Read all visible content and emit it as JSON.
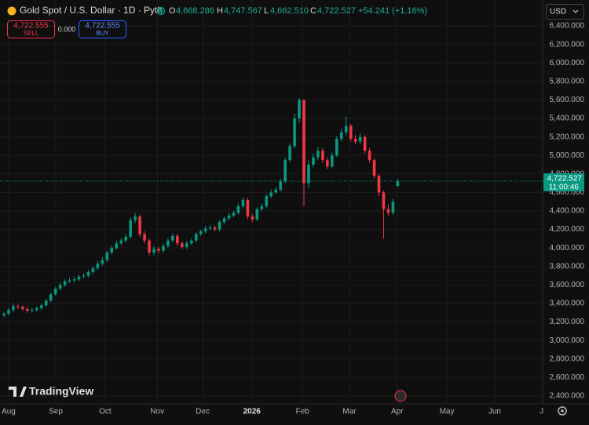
{
  "header": {
    "symbol": "Gold Spot / U.S. Dollar · 1D · Pyth",
    "o_key": "O",
    "o": "4,668.286",
    "h_key": "H",
    "h": "4,747.567",
    "l_key": "L",
    "l": "4,662.510",
    "c_key": "C",
    "c": "4,722.527",
    "change": "+54.241 (+1.16%)",
    "sell_price": "4,722.555",
    "sell": "SELL",
    "spread": "0.000",
    "buy_price": "4,722.555",
    "buy": "BUY",
    "currency": "USD",
    "brand": "TradingView"
  },
  "chart_data": {
    "type": "candlestick",
    "up_color": "#089981",
    "down_color": "#f23645",
    "open": [
      3270,
      3290,
      3330,
      3370,
      3360,
      3340,
      3320,
      3330,
      3350,
      3380,
      3430,
      3500,
      3560,
      3600,
      3640,
      3650,
      3660,
      3690,
      3700,
      3740,
      3780,
      3830,
      3870,
      3950,
      4000,
      4050,
      4080,
      4120,
      4300,
      4340,
      4150,
      4080,
      3950,
      3990,
      3970,
      4020,
      4080,
      4130,
      4050,
      4010,
      4050,
      4080,
      4150,
      4180,
      4210,
      4220,
      4200,
      4280,
      4320,
      4350,
      4380,
      4450,
      4520,
      4340,
      4310,
      4420,
      4450,
      4560,
      4600,
      4630,
      4720,
      4950,
      5100,
      5400,
      5600,
      4700,
      4900,
      4980,
      5050,
      4950,
      4880,
      5000,
      5180,
      5250,
      5320,
      5180,
      5150,
      5200,
      5050,
      4950,
      4780,
      4600,
      4420,
      4380,
      4668.286
    ],
    "high": [
      3310,
      3350,
      3400,
      3390,
      3380,
      3360,
      3350,
      3370,
      3400,
      3450,
      3520,
      3580,
      3630,
      3660,
      3680,
      3690,
      3710,
      3730,
      3760,
      3800,
      3860,
      3900,
      3970,
      4030,
      4080,
      4110,
      4150,
      4330,
      4380,
      4360,
      4180,
      4100,
      4020,
      4010,
      4050,
      4110,
      4160,
      4150,
      4070,
      4080,
      4100,
      4170,
      4200,
      4240,
      4250,
      4240,
      4300,
      4340,
      4380,
      4400,
      4480,
      4550,
      4540,
      4370,
      4440,
      4480,
      4580,
      4630,
      4660,
      4750,
      4980,
      5130,
      5450,
      5620,
      5600,
      4950,
      5020,
      5090,
      5080,
      4980,
      5030,
      5210,
      5290,
      5420,
      5340,
      5220,
      5240,
      5220,
      5080,
      4970,
      4800,
      4620,
      4470,
      4530,
      4747.567
    ],
    "low": [
      3250,
      3270,
      3310,
      3340,
      3320,
      3300,
      3300,
      3310,
      3330,
      3360,
      3410,
      3480,
      3540,
      3580,
      3620,
      3630,
      3640,
      3670,
      3680,
      3720,
      3760,
      3810,
      3850,
      3930,
      3980,
      4030,
      4060,
      4100,
      4270,
      4120,
      4050,
      3920,
      3920,
      3940,
      3950,
      4000,
      4060,
      4020,
      3990,
      3990,
      4030,
      4060,
      4130,
      4160,
      4190,
      4180,
      4180,
      4260,
      4300,
      4330,
      4360,
      4430,
      4310,
      4280,
      4290,
      4400,
      4430,
      4540,
      4580,
      4610,
      4700,
      4930,
      5080,
      5350,
      4450,
      4650,
      4870,
      4950,
      4920,
      4850,
      4860,
      4980,
      5150,
      5220,
      5150,
      5120,
      5120,
      5020,
      4920,
      4750,
      4560,
      4100,
      4350,
      4360,
      4662.51
    ],
    "close": [
      3290,
      3330,
      3370,
      3360,
      3340,
      3320,
      3330,
      3350,
      3380,
      3430,
      3500,
      3560,
      3600,
      3640,
      3650,
      3660,
      3690,
      3700,
      3740,
      3780,
      3830,
      3870,
      3950,
      4000,
      4050,
      4080,
      4120,
      4300,
      4340,
      4150,
      4080,
      3950,
      3990,
      3970,
      4020,
      4080,
      4130,
      4050,
      4010,
      4050,
      4080,
      4150,
      4180,
      4210,
      4220,
      4200,
      4280,
      4320,
      4350,
      4380,
      4450,
      4520,
      4340,
      4310,
      4420,
      4450,
      4560,
      4600,
      4630,
      4720,
      4950,
      5100,
      5400,
      5600,
      4700,
      4900,
      4980,
      5050,
      4950,
      4880,
      5000,
      5180,
      5250,
      5320,
      5180,
      5150,
      5200,
      5050,
      4950,
      4780,
      4600,
      4420,
      4380,
      4500,
      4722.527
    ],
    "xlim": [
      -0.84,
      115.1
    ],
    "xticks": [
      {
        "value": 1.0,
        "label": "Aug"
      },
      {
        "value": 11.06,
        "label": "Sep"
      },
      {
        "value": 21.6,
        "label": "Oct"
      },
      {
        "value": 32.7,
        "label": "Nov"
      },
      {
        "value": 42.4,
        "label": "Dec"
      },
      {
        "value": 52.9,
        "label": "2026"
      },
      {
        "value": 63.7,
        "label": "Feb"
      },
      {
        "value": 73.7,
        "label": "Mar"
      },
      {
        "value": 83.9,
        "label": "Apr"
      },
      {
        "value": 94.5,
        "label": "May"
      },
      {
        "value": 104.7,
        "label": "Jun"
      },
      {
        "value": 114.7,
        "label": "J"
      }
    ],
    "ylim": [
      2315,
      6680
    ],
    "yticks": [
      {
        "value": 2400,
        "label": "2,400.000"
      },
      {
        "value": 2600,
        "label": "2,600.000"
      },
      {
        "value": 2800,
        "label": "2,800.000"
      },
      {
        "value": 3000,
        "label": "3,000.000"
      },
      {
        "value": 3200,
        "label": "3,200.000"
      },
      {
        "value": 3400,
        "label": "3,400.000"
      },
      {
        "value": 3600,
        "label": "3,600.000"
      },
      {
        "value": 3800,
        "label": "3,800.000"
      },
      {
        "value": 4000,
        "label": "4,000.000"
      },
      {
        "value": 4200,
        "label": "4,200.000"
      },
      {
        "value": 4400,
        "label": "4,400.000"
      },
      {
        "value": 4600,
        "label": "4,600.000"
      },
      {
        "value": 4800,
        "label": "4,800.000"
      },
      {
        "value": 5000,
        "label": "5,000.000"
      },
      {
        "value": 5200,
        "label": "5,200.000"
      },
      {
        "value": 5400,
        "label": "5,400.000"
      },
      {
        "value": 5600,
        "label": "5,600.000"
      },
      {
        "value": 5800,
        "label": "5,800.000"
      },
      {
        "value": 6000,
        "label": "6,000.000"
      },
      {
        "value": 6200,
        "label": "6,200.000"
      },
      {
        "value": 6400,
        "label": "6,400.000"
      }
    ],
    "grid": true,
    "last_price": {
      "value": 4722.527,
      "label": "4,722.527",
      "countdown": "11:00:46"
    }
  }
}
